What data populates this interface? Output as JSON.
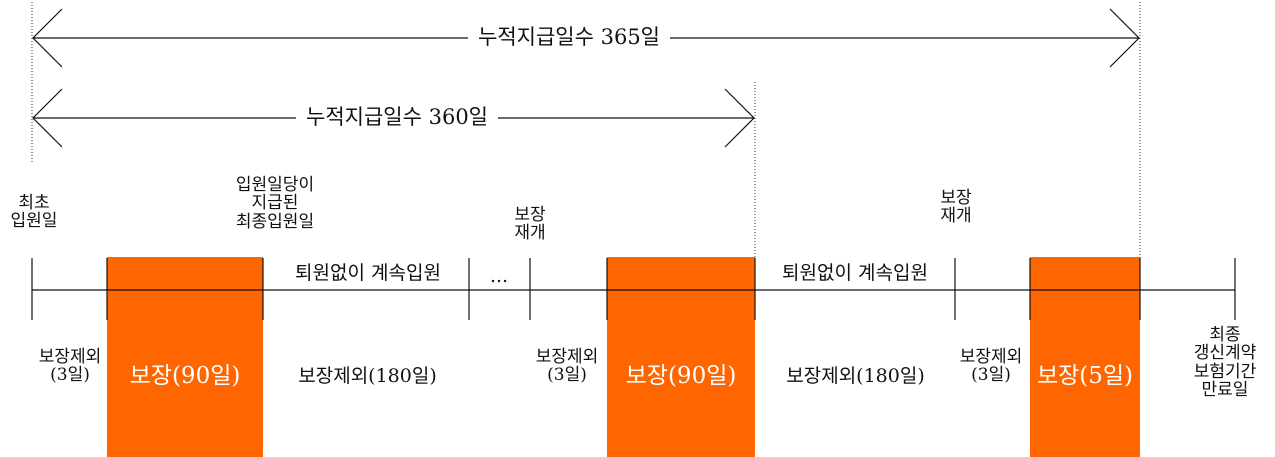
{
  "spans": {
    "outer_label": "누적지급일수 365일",
    "inner_label": "누적지급일수 360일"
  },
  "events": {
    "first_admission": "최초\n입원일",
    "last_paid_admission": "입원일당이\n지급된\n최종입원일",
    "resume_1": "보장\n재개",
    "resume_2": "보장\n재개"
  },
  "timeline": {
    "continuous_1": "퇴원없이 계속입원",
    "ellipsis": "...",
    "continuous_2": "퇴원없이 계속입원"
  },
  "bottom": {
    "excl_3_a": "보장제외\n(3일)",
    "cover_90_a": "보장(90일)",
    "excl_180_a": "보장제외(180일)",
    "excl_3_b": "보장제외\n(3일)",
    "cover_90_b": "보장(90일)",
    "excl_180_b": "보장제외(180일)",
    "excl_3_c": "보장제외\n(3일)",
    "cover_5": "보장(5일)",
    "end_label": "최종\n갱신계약\n보험기간\n만료일"
  },
  "colors": {
    "coverage": "#ff6600",
    "line": "#111111"
  }
}
